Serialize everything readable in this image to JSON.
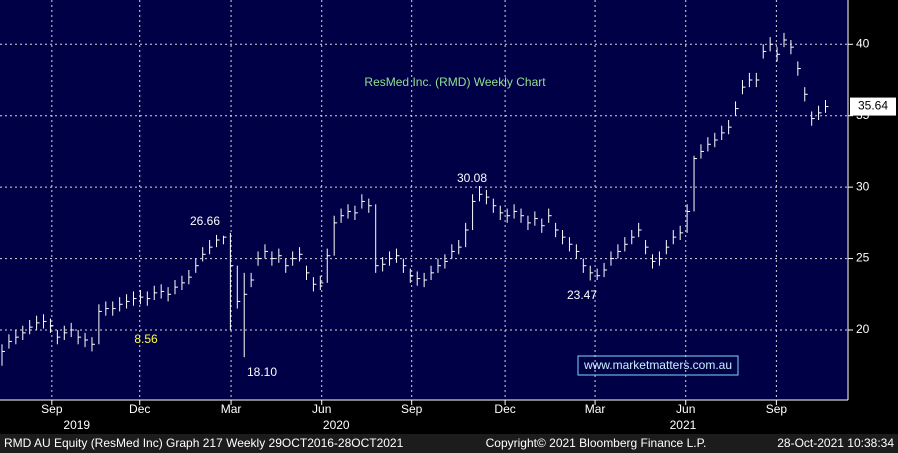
{
  "chart_data": {
    "type": "ohlc",
    "title": "ResMed Inc. (RMD) Weekly Chart",
    "x": [
      0,
      1,
      2,
      3,
      4,
      5,
      6,
      7,
      8,
      9,
      10,
      11,
      12,
      13,
      14,
      15,
      16,
      17,
      18,
      19,
      20,
      21,
      22,
      23,
      24,
      25,
      26,
      27,
      28,
      29,
      30,
      31,
      32,
      33,
      34,
      35,
      36,
      37,
      38,
      39,
      40,
      41,
      42,
      43,
      44,
      45,
      46,
      47,
      48,
      49,
      50,
      51,
      52,
      53,
      54,
      55,
      56,
      57,
      58,
      59,
      60,
      61,
      62,
      63,
      64,
      65,
      66,
      67,
      68,
      69,
      70,
      71,
      72,
      73,
      74,
      75,
      76,
      77,
      78,
      79,
      80,
      81,
      82,
      83,
      84,
      85,
      86,
      87,
      88,
      89,
      90,
      91,
      92,
      93,
      94,
      95,
      96,
      97,
      98,
      99,
      100,
      101,
      102,
      103,
      104,
      105,
      106,
      107,
      108,
      109,
      110,
      111,
      112,
      113,
      114,
      115,
      116,
      117,
      118,
      119
    ],
    "high": [
      19.0,
      19.7,
      20.0,
      20.3,
      20.7,
      21.0,
      21.1,
      20.8,
      20.0,
      20.3,
      20.5,
      20.0,
      19.8,
      19.5,
      21.8,
      22.0,
      22.0,
      22.3,
      22.5,
      22.7,
      22.8,
      22.7,
      23.1,
      23.2,
      23.0,
      23.5,
      23.8,
      24.2,
      25.0,
      25.8,
      26.3,
      26.66,
      26.6,
      26.8,
      24.5,
      24.0,
      24.0,
      25.5,
      26.0,
      25.5,
      25.7,
      25.0,
      25.5,
      25.8,
      24.5,
      23.7,
      23.8,
      25.7,
      28.0,
      28.5,
      28.8,
      28.7,
      29.5,
      29.2,
      28.8,
      25.1,
      25.5,
      25.7,
      25.0,
      24.3,
      24.1,
      24.0,
      24.5,
      25.0,
      25.3,
      26.0,
      26.3,
      27.5,
      29.5,
      30.08,
      29.8,
      29.2,
      28.7,
      28.5,
      28.8,
      28.5,
      28.0,
      28.3,
      27.8,
      28.5,
      27.5,
      27.0,
      26.5,
      26.0,
      25.0,
      24.5,
      24.3,
      24.7,
      25.5,
      26.0,
      26.5,
      27.0,
      27.5,
      26.3,
      25.3,
      25.5,
      26.3,
      27.0,
      27.3,
      28.8,
      32.2,
      33.0,
      33.5,
      33.8,
      34.3,
      34.7,
      36.0,
      37.5,
      38.0,
      38.0,
      40.0,
      40.5,
      39.8,
      40.8,
      40.3,
      38.8,
      37.0,
      35.3,
      35.7,
      36.1
    ],
    "low": [
      17.5,
      18.7,
      19.0,
      19.3,
      19.7,
      20.0,
      20.1,
      19.8,
      19.0,
      19.3,
      19.5,
      19.0,
      18.8,
      18.5,
      19.0,
      21.0,
      21.0,
      21.3,
      21.5,
      21.7,
      21.8,
      21.7,
      22.1,
      22.2,
      22.0,
      22.5,
      22.8,
      23.2,
      24.0,
      24.8,
      25.3,
      25.8,
      26.0,
      20.0,
      21.5,
      18.1,
      23.0,
      24.5,
      25.0,
      24.5,
      24.7,
      24.0,
      24.5,
      24.8,
      23.5,
      22.7,
      22.8,
      23.3,
      25.2,
      27.5,
      27.8,
      27.7,
      28.5,
      28.2,
      24.0,
      24.1,
      24.5,
      24.7,
      24.0,
      23.3,
      23.1,
      23.0,
      23.5,
      24.0,
      24.3,
      25.0,
      25.3,
      25.8,
      27.0,
      29.0,
      28.8,
      28.2,
      27.7,
      27.5,
      27.8,
      27.5,
      27.0,
      27.3,
      26.8,
      27.5,
      26.5,
      26.0,
      25.5,
      25.0,
      24.0,
      23.47,
      23.5,
      23.7,
      24.5,
      25.0,
      25.5,
      26.0,
      26.5,
      25.3,
      24.3,
      24.5,
      25.3,
      26.0,
      26.3,
      26.8,
      28.3,
      32.0,
      32.5,
      32.8,
      33.3,
      33.7,
      35.0,
      36.5,
      37.0,
      37.0,
      39.0,
      39.5,
      38.8,
      39.8,
      39.3,
      37.8,
      36.0,
      34.3,
      34.7,
      35.2
    ],
    "close": [
      18.5,
      19.2,
      19.5,
      19.8,
      20.2,
      20.5,
      20.6,
      20.3,
      19.5,
      19.8,
      20.0,
      19.5,
      19.3,
      19.0,
      21.3,
      21.5,
      21.5,
      21.8,
      22.0,
      22.2,
      22.3,
      22.2,
      22.6,
      22.7,
      22.5,
      23.0,
      23.3,
      23.7,
      24.5,
      25.3,
      25.8,
      26.3,
      26.5,
      24.5,
      22.0,
      22.5,
      23.5,
      25.0,
      25.5,
      25.0,
      25.2,
      24.5,
      25.0,
      25.3,
      24.0,
      23.2,
      23.3,
      25.2,
      27.5,
      28.0,
      28.3,
      28.2,
      29.0,
      28.7,
      24.5,
      24.6,
      25.0,
      25.2,
      24.5,
      23.8,
      23.6,
      23.5,
      24.0,
      24.5,
      24.8,
      25.5,
      25.8,
      27.0,
      29.0,
      29.5,
      29.3,
      28.7,
      28.2,
      28.0,
      28.3,
      28.0,
      27.5,
      27.8,
      27.3,
      28.0,
      27.0,
      26.5,
      26.0,
      25.5,
      24.5,
      24.0,
      23.8,
      24.2,
      25.0,
      25.5,
      26.0,
      26.5,
      27.0,
      25.8,
      24.8,
      25.0,
      25.8,
      26.5,
      26.8,
      28.3,
      32.0,
      32.5,
      33.0,
      33.3,
      33.8,
      34.2,
      35.5,
      37.0,
      37.5,
      37.5,
      39.5,
      40.0,
      39.3,
      40.3,
      39.8,
      38.3,
      36.5,
      34.8,
      35.2,
      35.64
    ],
    "color": "#ffffff",
    "xlim": [
      -0.29,
      122.25
    ],
    "ylim": [
      15.1,
      43.1
    ],
    "yticks": [
      20,
      25,
      30,
      35,
      40
    ],
    "xticks": [
      {
        "value": 7.2,
        "label": "Sep"
      },
      {
        "value": 19.9,
        "label": "Dec"
      },
      {
        "value": 33.1,
        "label": "Mar"
      },
      {
        "value": 46.2,
        "label": "Jun"
      },
      {
        "value": 59.2,
        "label": "Sep"
      },
      {
        "value": 72.7,
        "label": "Dec"
      },
      {
        "value": 85.7,
        "label": "Mar"
      },
      {
        "value": 98.8,
        "label": "Jun"
      },
      {
        "value": 111.9,
        "label": "Sep"
      }
    ],
    "year_labels": [
      {
        "value": 10.8,
        "label": "2019"
      },
      {
        "value": 48.3,
        "label": "2020"
      },
      {
        "value": 98.4,
        "label": "2021"
      }
    ],
    "grid": true,
    "annotations": [
      "26.66",
      "8.56",
      "18.10",
      "30.08",
      "23.47"
    ],
    "watermark": "www.marketmatters.com.au"
  },
  "footer": {
    "left": "RMD AU Equity (ResMed Inc) Graph 217  Weekly 29OCT2016-28OCT2021",
    "center": "Copyright© 2021 Bloomberg Finance L.P.",
    "right": "28-Oct-2021 10:38:34"
  }
}
